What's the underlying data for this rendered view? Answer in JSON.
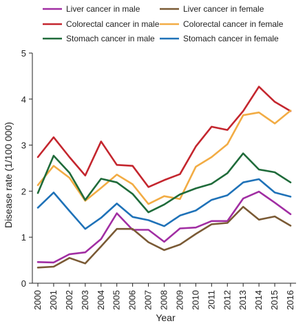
{
  "chart_data": {
    "type": "line",
    "xlabel": "Year",
    "ylabel": "Disease rate (1/100 000)",
    "x": [
      "2000",
      "2001",
      "2002",
      "2003",
      "2004",
      "2005",
      "2006",
      "2007",
      "2008",
      "2009",
      "2010",
      "2011",
      "2012",
      "2013",
      "2014",
      "2015",
      "2016"
    ],
    "ylim": [
      0,
      5
    ],
    "yticks": [
      0,
      1,
      2,
      3,
      4,
      5
    ],
    "grid": false,
    "legend_position": "top",
    "series": [
      {
        "name": "Liver cancer in male",
        "color": "#a12ea3",
        "values": [
          0.46,
          0.45,
          0.63,
          0.67,
          0.96,
          1.52,
          1.16,
          1.16,
          0.9,
          1.19,
          1.21,
          1.35,
          1.35,
          1.84,
          1.99,
          1.75,
          1.5
        ]
      },
      {
        "name": "Liver cancer in female",
        "color": "#7a5a35",
        "values": [
          0.34,
          0.36,
          0.55,
          0.43,
          0.8,
          1.18,
          1.18,
          0.89,
          0.72,
          0.84,
          1.07,
          1.28,
          1.31,
          1.66,
          1.38,
          1.45,
          1.25
        ]
      },
      {
        "name": "Colorectal cancer in male",
        "color": "#c4262e",
        "values": [
          2.74,
          3.17,
          2.74,
          2.34,
          3.08,
          2.57,
          2.55,
          2.09,
          2.24,
          2.37,
          2.97,
          3.4,
          3.33,
          3.74,
          4.27,
          3.94,
          3.74
        ]
      },
      {
        "name": "Colorectal cancer in female",
        "color": "#f2ac44",
        "values": [
          2.13,
          2.55,
          2.29,
          1.79,
          2.07,
          2.36,
          2.15,
          1.72,
          1.89,
          1.83,
          2.53,
          2.74,
          3.02,
          3.65,
          3.71,
          3.47,
          3.75
        ]
      },
      {
        "name": "Stomach cancer in male",
        "color": "#1f6b3a",
        "values": [
          1.96,
          2.77,
          2.4,
          1.81,
          2.27,
          2.19,
          1.94,
          1.54,
          1.71,
          1.93,
          2.06,
          2.16,
          2.39,
          2.82,
          2.47,
          2.41,
          2.19
        ]
      },
      {
        "name": "Stomach cancer in female",
        "color": "#1f72b8",
        "values": [
          1.64,
          1.97,
          1.57,
          1.18,
          1.42,
          1.73,
          1.44,
          1.37,
          1.24,
          1.47,
          1.58,
          1.81,
          1.91,
          2.19,
          2.26,
          1.97,
          1.88
        ]
      }
    ]
  }
}
